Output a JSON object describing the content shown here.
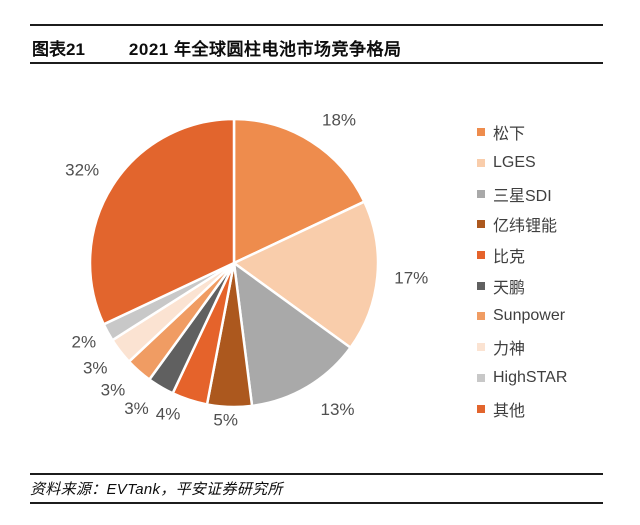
{
  "header": {
    "figure_label": "图表21",
    "title": "2021 年全球圆柱电池市场竞争格局"
  },
  "footer": {
    "source": "资料来源：EVTank，平安证券研究所"
  },
  "chart_data": {
    "type": "pie",
    "title": "2021 年全球圆柱电池市场竞争格局",
    "start_angle_deg": 0,
    "direction": "clockwise",
    "legend_position": "right",
    "slice_border_color": "#ffffff",
    "label_color": "#4f4f4f",
    "slices": [
      {
        "label": "松下",
        "value": 18,
        "display": "18%",
        "color": "#EE8C4D"
      },
      {
        "label": "LGES",
        "value": 17,
        "display": "17%",
        "color": "#F9CDAB"
      },
      {
        "label": "三星SDI",
        "value": 13,
        "display": "13%",
        "color": "#A9A9A9"
      },
      {
        "label": "亿纬锂能",
        "value": 5,
        "display": "5%",
        "color": "#AC581E"
      },
      {
        "label": "比克",
        "value": 4,
        "display": "4%",
        "color": "#E5632B"
      },
      {
        "label": "天鹏",
        "value": 3,
        "display": "3%",
        "color": "#606060"
      },
      {
        "label": "Sunpower",
        "value": 3,
        "display": "3%",
        "color": "#F09C63"
      },
      {
        "label": "力神",
        "value": 3,
        "display": "3%",
        "color": "#FBE3D2"
      },
      {
        "label": "HighSTAR",
        "value": 2,
        "display": "2%",
        "color": "#C8C8C8"
      },
      {
        "label": "其他",
        "value": 32,
        "display": "32%",
        "color": "#E2652D"
      }
    ]
  }
}
